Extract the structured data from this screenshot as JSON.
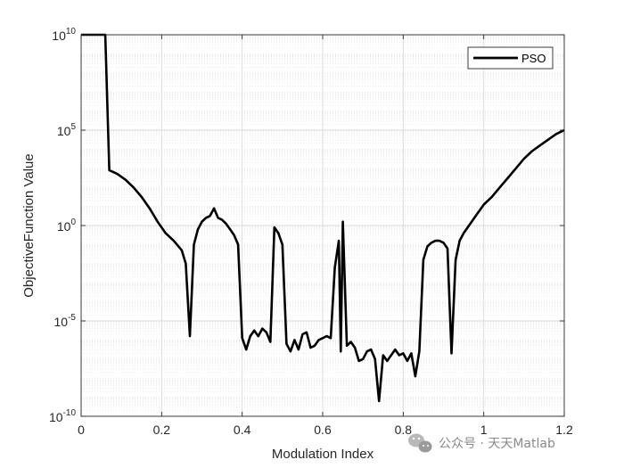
{
  "chart_data": {
    "type": "line",
    "title": "",
    "xlabel": "Modulation Index",
    "ylabel": "ObjectiveFunction Value",
    "xlim": [
      0,
      1.2
    ],
    "ylim_log10": [
      -10,
      10
    ],
    "yscale": "log",
    "grid": true,
    "minor_grid": true,
    "legend_placement": "top-right",
    "x_ticks": [
      {
        "value": 0,
        "label": "0"
      },
      {
        "value": 0.2,
        "label": "0.2"
      },
      {
        "value": 0.4,
        "label": "0.4"
      },
      {
        "value": 0.6,
        "label": "0.6"
      },
      {
        "value": 0.8,
        "label": "0.8"
      },
      {
        "value": 1,
        "label": "1"
      },
      {
        "value": 1.2,
        "label": "1.2"
      }
    ],
    "y_ticks": [
      {
        "exp": -10,
        "base": "10",
        "sup": "-10"
      },
      {
        "exp": -5,
        "base": "10",
        "sup": "-5"
      },
      {
        "exp": 0,
        "base": "10",
        "sup": "0"
      },
      {
        "exp": 5,
        "base": "10",
        "sup": "5"
      },
      {
        "exp": 10,
        "base": "10",
        "sup": "10"
      }
    ],
    "series": [
      {
        "name": "PSO",
        "color": "#000000",
        "x": [
          0,
          0.06,
          0.07,
          0.09,
          0.11,
          0.13,
          0.15,
          0.17,
          0.19,
          0.21,
          0.23,
          0.25,
          0.26,
          0.27,
          0.28,
          0.29,
          0.3,
          0.31,
          0.32,
          0.33,
          0.34,
          0.35,
          0.36,
          0.37,
          0.38,
          0.39,
          0.4,
          0.41,
          0.42,
          0.43,
          0.44,
          0.45,
          0.46,
          0.47,
          0.48,
          0.49,
          0.5,
          0.51,
          0.52,
          0.53,
          0.54,
          0.55,
          0.56,
          0.57,
          0.58,
          0.59,
          0.6,
          0.61,
          0.62,
          0.63,
          0.64,
          0.645,
          0.65,
          0.66,
          0.67,
          0.68,
          0.69,
          0.7,
          0.71,
          0.72,
          0.73,
          0.74,
          0.75,
          0.76,
          0.77,
          0.78,
          0.79,
          0.8,
          0.81,
          0.82,
          0.83,
          0.84,
          0.85,
          0.86,
          0.87,
          0.88,
          0.89,
          0.9,
          0.91,
          0.92,
          0.93,
          0.94,
          0.95,
          0.96,
          0.97,
          0.98,
          0.99,
          1.0,
          1.02,
          1.04,
          1.06,
          1.08,
          1.1,
          1.12,
          1.14,
          1.16,
          1.18,
          1.2
        ],
        "y_log10": [
          10,
          10,
          2.9,
          2.7,
          2.4,
          2.0,
          1.5,
          0.9,
          0.2,
          -0.4,
          -0.8,
          -1.3,
          -2.0,
          -5.8,
          -1.0,
          -0.2,
          0.2,
          0.4,
          0.5,
          0.9,
          0.4,
          0.3,
          0.1,
          -0.2,
          -0.5,
          -1.0,
          -5.9,
          -6.5,
          -5.8,
          -5.5,
          -5.8,
          -5.4,
          -5.6,
          -6.1,
          -0.1,
          -0.4,
          -1.0,
          -6.2,
          -6.6,
          -6.0,
          -6.5,
          -5.7,
          -5.6,
          -6.4,
          -6.3,
          -6.0,
          -5.9,
          -5.8,
          -5.9,
          -2.2,
          -0.8,
          -6.6,
          0.2,
          -6.3,
          -6.1,
          -6.4,
          -7.1,
          -7.0,
          -6.6,
          -6.5,
          -7.0,
          -9.2,
          -6.8,
          -7.1,
          -6.8,
          -6.5,
          -6.8,
          -6.7,
          -7.1,
          -6.7,
          -7.9,
          -6.6,
          -1.8,
          -1.1,
          -0.9,
          -0.8,
          -0.8,
          -0.9,
          -1.2,
          -6.7,
          -1.8,
          -0.8,
          -0.4,
          -0.1,
          0.2,
          0.5,
          0.8,
          1.1,
          1.5,
          2.0,
          2.5,
          3.0,
          3.5,
          3.9,
          4.2,
          4.5,
          4.8,
          5.0
        ]
      }
    ]
  },
  "watermark": {
    "icon": "wechat-icon",
    "text": "公众号 · 天天Matlab"
  }
}
